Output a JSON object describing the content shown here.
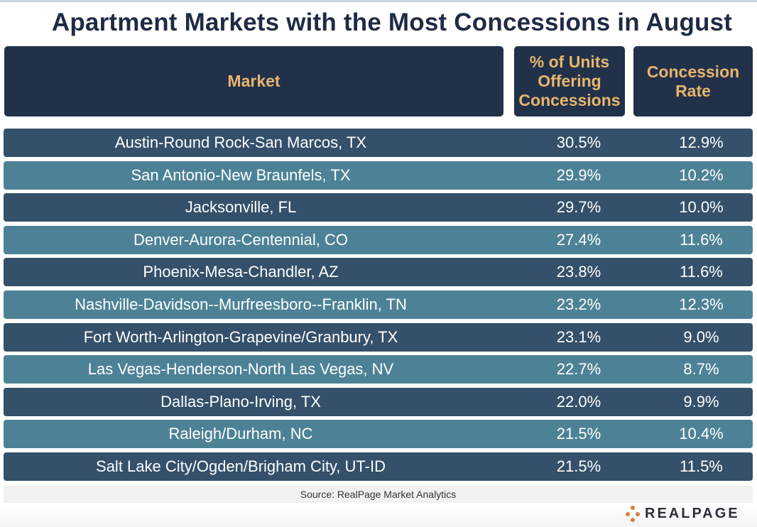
{
  "title": "Apartment Markets with the Most Concessions in August",
  "headers": {
    "market": "Market",
    "pct_units": "% of Units Offering Concessions",
    "rate": "Concession Rate"
  },
  "rows": [
    {
      "market": "Austin-Round Rock-San Marcos, TX",
      "pct": "30.5%",
      "rate": "12.9%"
    },
    {
      "market": "San Antonio-New Braunfels, TX",
      "pct": "29.9%",
      "rate": "10.2%"
    },
    {
      "market": "Jacksonville, FL",
      "pct": "29.7%",
      "rate": "10.0%"
    },
    {
      "market": "Denver-Aurora-Centennial, CO",
      "pct": "27.4%",
      "rate": "11.6%"
    },
    {
      "market": "Phoenix-Mesa-Chandler, AZ",
      "pct": "23.8%",
      "rate": "11.6%"
    },
    {
      "market": "Nashville-Davidson--Murfreesboro--Franklin, TN",
      "pct": "23.2%",
      "rate": "12.3%"
    },
    {
      "market": "Fort Worth-Arlington-Grapevine/Granbury, TX",
      "pct": "23.1%",
      "rate": "9.0%"
    },
    {
      "market": "Las Vegas-Henderson-North Las Vegas, NV",
      "pct": "22.7%",
      "rate": "8.7%"
    },
    {
      "market": "Dallas-Plano-Irving, TX",
      "pct": "22.0%",
      "rate": "9.9%"
    },
    {
      "market": "Raleigh/Durham, NC",
      "pct": "21.5%",
      "rate": "10.4%"
    },
    {
      "market": "Salt Lake City/Ogden/Brigham City, UT-ID",
      "pct": "21.5%",
      "rate": "11.5%"
    }
  ],
  "source": "Source: RealPage Market Analytics",
  "logo": {
    "text": "REALPAGE",
    "icon": "realpage-dots-icon",
    "dot_color": "#e07a3c"
  },
  "colors": {
    "header_bg": "#22314a",
    "header_text": "#e8b56c",
    "row_dark": "#34506a",
    "row_light": "#4d8296",
    "title": "#1f2b45"
  },
  "chart_data": {
    "type": "table",
    "title": "Apartment Markets with the Most Concessions in August",
    "columns": [
      "Market",
      "% of Units Offering Concessions",
      "Concession Rate"
    ],
    "rows": [
      [
        "Austin-Round Rock-San Marcos, TX",
        30.5,
        12.9
      ],
      [
        "San Antonio-New Braunfels, TX",
        29.9,
        10.2
      ],
      [
        "Jacksonville, FL",
        29.7,
        10.0
      ],
      [
        "Denver-Aurora-Centennial, CO",
        27.4,
        11.6
      ],
      [
        "Phoenix-Mesa-Chandler, AZ",
        23.8,
        11.6
      ],
      [
        "Nashville-Davidson--Murfreesboro--Franklin, TN",
        23.2,
        12.3
      ],
      [
        "Fort Worth-Arlington-Grapevine/Granbury, TX",
        23.1,
        9.0
      ],
      [
        "Las Vegas-Henderson-North Las Vegas, NV",
        22.7,
        8.7
      ],
      [
        "Dallas-Plano-Irving, TX",
        22.0,
        9.9
      ],
      [
        "Raleigh/Durham, NC",
        21.5,
        10.4
      ],
      [
        "Salt Lake City/Ogden/Brigham City, UT-ID",
        21.5,
        11.5
      ]
    ],
    "source": "Source: RealPage Market Analytics"
  }
}
